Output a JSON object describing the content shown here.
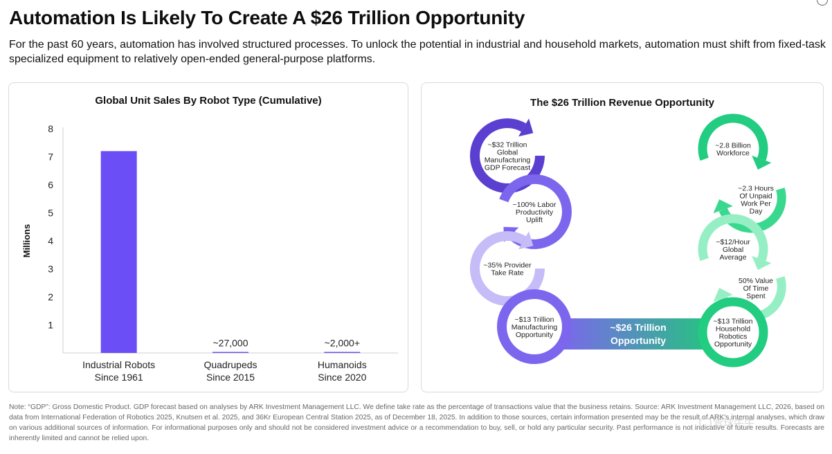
{
  "header": {
    "title": "Automation Is Likely To Create A $26 Trillion Opportunity",
    "subtitle": "For the past 60 years, automation has involved structured processes. To unlock the potential in industrial and household markets, automation must shift from fixed-task specialized equipment to relatively open-ended general-purpose platforms."
  },
  "chart_data": [
    {
      "type": "bar",
      "title": "Global Unit Sales By Robot Type (Cumulative)",
      "ylabel": "Millions",
      "xlabel": "",
      "ylim": [
        0,
        8
      ],
      "yticks": [
        1,
        2,
        3,
        4,
        5,
        6,
        7,
        8
      ],
      "categories": [
        {
          "line1": "Industrial Robots",
          "line2": "Since 1961"
        },
        {
          "line1": "Quadrupeds",
          "line2": "Since 2015"
        },
        {
          "line1": "Humanoids",
          "line2": "Since 2020"
        }
      ],
      "values": [
        7.2,
        0.027,
        0.002
      ],
      "data_labels": [
        "",
        "~27,000",
        "~2,000+"
      ],
      "bar_color": "#6b4ef5",
      "grid": false
    }
  ],
  "flow": {
    "title": "The $26 Trillion Revenue Opportunity",
    "manufacturing_steps": [
      {
        "lines": [
          "~$32 Trillion",
          "Global",
          "Manufacturing",
          "GDP Forecast"
        ],
        "color": "#5a3fd0"
      },
      {
        "lines": [
          "~100% Labor",
          "Productivity",
          "Uplift"
        ],
        "color": "#7c66ee"
      },
      {
        "lines": [
          "~35% Provider",
          "Take Rate"
        ],
        "color": "#c5bcf8"
      },
      {
        "lines": [
          "~$13 Trillion",
          "Manufacturing",
          "Opportunity"
        ],
        "color": "#7c66ee"
      }
    ],
    "household_steps": [
      {
        "lines": [
          "~2.8 Billion",
          "Workforce"
        ],
        "color": "#22cc80"
      },
      {
        "lines": [
          "~2.3 Hours",
          "Of Unpaid",
          "Work Per",
          "Day"
        ],
        "color": "#3ad88f"
      },
      {
        "lines": [
          "~$12/Hour",
          "Global",
          "Average"
        ],
        "color": "#96efc4"
      },
      {
        "lines": [
          "50% Value",
          "Of Time",
          "Spent"
        ],
        "color": "#96efc4"
      },
      {
        "lines": [
          "~$13 Trillion",
          "Household",
          "Robotics",
          "Opportunity"
        ],
        "color": "#22cc80"
      }
    ],
    "total": {
      "lines": [
        "~$26 Trillion",
        "Opportunity"
      ],
      "color_start": "#7c66ee",
      "color_end": "#20c97a"
    }
  },
  "footer": {
    "note": "Note: “GDP”: Gross Domestic Product. GDP forecast based on analyses by ARK Investment Management LLC. We define take rate as the percentage of transactions value that the business retains. Source: ARK Investment Management LLC, 2026, based on data from International Federation of Robotics 2025, Knutsen et al. 2025, and 36Kr European Central Station 2025, as of December 18, 2025. In addition to those sources, certain information presented may be the result of ARK's internal analyses, which draw on various additional sources of information. For informational purposes only and should not be considered investment advice or a recommendation to buy, sell, or hold any particular security. Past performance is not indicative of future results. Forecasts are inherently limited and cannot be relied upon.",
    "watermark": "雪球牛牛"
  }
}
